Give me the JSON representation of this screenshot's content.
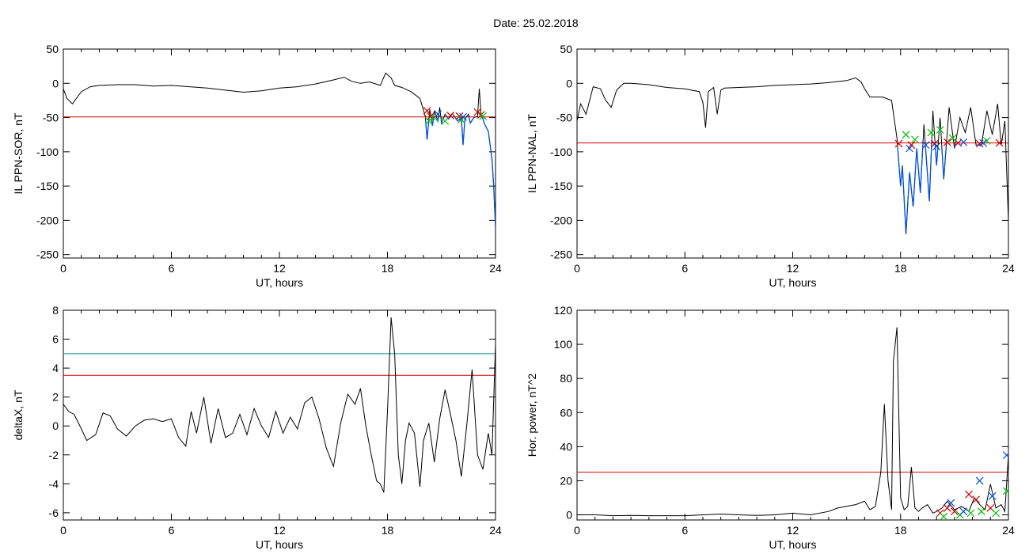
{
  "figure": {
    "title": "Date:  25.02.2018"
  },
  "colors": {
    "trace": "#000000",
    "threshold_red": "#d00000",
    "threshold_cyan": "#008c8c",
    "blue_segment": "#0050e0",
    "cross_red": "#d00000",
    "cross_green": "#00c000",
    "cross_blue": "#0050e0"
  },
  "chart_data": [
    {
      "id": "p1",
      "type": "line",
      "ylabel": "IL PPN-SOR, nT",
      "xlabel": "UT, hours",
      "xlim": [
        0,
        24
      ],
      "ylim": [
        -255,
        50
      ],
      "xticks": [
        0,
        6,
        12,
        18,
        24
      ],
      "yticks": [
        50,
        0,
        -50,
        -100,
        -150,
        -200,
        -250
      ],
      "thresholds": [
        {
          "y": -49,
          "color": "#d00000"
        }
      ],
      "series": [
        {
          "x": [
            0,
            0.2,
            0.5,
            1,
            1.5,
            2,
            3,
            4,
            5,
            6,
            7,
            8,
            9,
            10,
            11,
            12,
            13,
            14,
            15,
            15.6,
            16,
            16.5,
            17,
            17.6,
            17.9,
            18.2,
            18.4,
            18.8,
            19.3,
            19.8,
            20.1,
            20.2,
            20.35,
            20.5,
            20.6,
            20.8,
            20.9,
            21.0,
            21.2,
            21.4,
            21.6,
            21.9,
            22.1,
            22.2,
            22.3,
            22.5,
            22.6,
            22.8,
            23.0,
            23.1,
            23.2,
            23.3,
            23.4,
            23.6,
            23.8,
            23.9,
            24
          ],
          "y": [
            -8,
            -22,
            -30,
            -12,
            -5,
            -3,
            -2,
            -2,
            -4,
            -3,
            -5,
            -7,
            -10,
            -13,
            -11,
            -7,
            -5,
            -1,
            5,
            9,
            3,
            0,
            2,
            -3,
            15,
            8,
            -3,
            -6,
            -12,
            -22,
            -48,
            -82,
            -38,
            -62,
            -40,
            -55,
            -35,
            -58,
            -45,
            -52,
            -44,
            -55,
            -50,
            -90,
            -52,
            -45,
            -58,
            -50,
            -48,
            -8,
            -45,
            -52,
            -60,
            -70,
            -110,
            -150,
            -210
          ]
        }
      ],
      "blue_segments_x_ranges": [
        [
          20.1,
          24
        ]
      ],
      "crosses": {
        "red": [
          [
            20.2,
            -40
          ],
          [
            20.4,
            -48
          ],
          [
            21.5,
            -47
          ],
          [
            22.0,
            -48
          ],
          [
            23.0,
            -42
          ],
          [
            23.2,
            -46
          ]
        ],
        "green": [
          [
            20.3,
            -55
          ],
          [
            20.6,
            -50
          ],
          [
            21.2,
            -55
          ],
          [
            22.1,
            -53
          ],
          [
            23.3,
            -48
          ]
        ],
        "blue": [
          [
            20.8,
            -45
          ],
          [
            22.2,
            -49
          ]
        ]
      }
    },
    {
      "id": "p2",
      "type": "line",
      "ylabel": "IL PPN-NAL, nT",
      "xlabel": "UT, hours",
      "xlim": [
        0,
        24
      ],
      "ylim": [
        -255,
        50
      ],
      "xticks": [
        0,
        6,
        12,
        18,
        24
      ],
      "yticks": [
        50,
        0,
        -50,
        -100,
        -150,
        -200,
        -250
      ],
      "thresholds": [
        {
          "y": -87,
          "color": "#d00000"
        }
      ],
      "series": [
        {
          "x": [
            0,
            0.2,
            0.5,
            0.9,
            1.3,
            1.6,
            1.9,
            2.2,
            2.6,
            3,
            4,
            5,
            6,
            6.8,
            7.0,
            7.15,
            7.3,
            7.6,
            7.8,
            8.0,
            8.2,
            9,
            10,
            11,
            12,
            13,
            14,
            15,
            15.5,
            15.8,
            16,
            16.3,
            17,
            17.5,
            17.8,
            18.0,
            18.1,
            18.3,
            18.5,
            18.7,
            18.9,
            19.1,
            19.3,
            19.6,
            19.8,
            20.0,
            20.2,
            20.4,
            20.7,
            21.0,
            21.3,
            21.6,
            21.9,
            22.2,
            22.5,
            22.8,
            23.1,
            23.4,
            23.6,
            23.8,
            24
          ],
          "y": [
            -55,
            -30,
            -45,
            -5,
            -8,
            -25,
            -35,
            -10,
            0,
            0,
            -2,
            -6,
            -8,
            -12,
            -28,
            -65,
            -12,
            -6,
            -45,
            -10,
            -7,
            -6,
            -5,
            -3,
            -2,
            -1,
            1,
            4,
            8,
            2,
            -8,
            -20,
            -20,
            -25,
            -80,
            -150,
            -120,
            -220,
            -130,
            -180,
            -95,
            -160,
            -60,
            -172,
            -40,
            -120,
            -50,
            -140,
            -35,
            -95,
            -50,
            -72,
            -35,
            -90,
            -90,
            -40,
            -75,
            -30,
            -90,
            -55,
            -200
          ]
        }
      ],
      "blue_segments_x_ranges": [
        [
          17.8,
          21.5
        ],
        [
          22.0,
          23.0
        ]
      ],
      "crosses": {
        "red": [
          [
            17.9,
            -88
          ],
          [
            18.6,
            -90
          ],
          [
            19.9,
            -88
          ],
          [
            20.6,
            -86
          ],
          [
            21.2,
            -87
          ],
          [
            22.4,
            -88
          ],
          [
            23.5,
            -87
          ]
        ],
        "green": [
          [
            18.3,
            -75
          ],
          [
            18.8,
            -82
          ],
          [
            19.7,
            -72
          ],
          [
            20.2,
            -68
          ],
          [
            20.9,
            -80
          ],
          [
            22.8,
            -84
          ]
        ],
        "blue": [
          [
            18.5,
            -95
          ],
          [
            19.4,
            -90
          ],
          [
            20.0,
            -92
          ],
          [
            21.5,
            -86
          ],
          [
            22.6,
            -87
          ]
        ]
      }
    },
    {
      "id": "p3",
      "type": "line",
      "ylabel": "deltaX, nT",
      "xlabel": "UT, hours",
      "xlim": [
        0,
        24
      ],
      "ylim": [
        -6.5,
        8
      ],
      "xticks": [
        0,
        6,
        12,
        18,
        24
      ],
      "yticks": [
        8,
        6,
        4,
        2,
        0,
        -2,
        -4,
        -6
      ],
      "thresholds": [
        {
          "y": 5,
          "color": "#008c8c"
        },
        {
          "y": 3.5,
          "color": "#d00000"
        }
      ],
      "series": [
        {
          "x": [
            0,
            0.3,
            0.6,
            1.0,
            1.3,
            1.8,
            2.2,
            2.6,
            3.0,
            3.5,
            4.0,
            4.5,
            5.0,
            5.5,
            6.0,
            6.4,
            6.8,
            7.1,
            7.4,
            7.8,
            8.2,
            8.6,
            9.0,
            9.4,
            9.8,
            10.2,
            10.6,
            11.0,
            11.4,
            11.8,
            12.2,
            12.6,
            13.0,
            13.4,
            13.8,
            14.2,
            14.6,
            15.0,
            15.4,
            15.8,
            16.2,
            16.5,
            16.8,
            17.1,
            17.4,
            17.6,
            17.8,
            18.0,
            18.2,
            18.4,
            18.6,
            18.8,
            19.0,
            19.2,
            19.5,
            19.8,
            20.0,
            20.3,
            20.6,
            20.9,
            21.2,
            21.5,
            21.8,
            22.1,
            22.4,
            22.7,
            23.0,
            23.3,
            23.6,
            23.8,
            24
          ],
          "y": [
            1.5,
            1.0,
            0.8,
            -0.2,
            -1.0,
            -0.6,
            0.9,
            0.7,
            -0.2,
            -0.7,
            0.0,
            0.4,
            0.5,
            0.3,
            0.5,
            -0.8,
            -1.4,
            1.0,
            -0.5,
            2.0,
            -1.2,
            1.2,
            -0.8,
            -0.5,
            0.8,
            -0.6,
            1.2,
            0.0,
            -0.8,
            1.0,
            -0.5,
            0.6,
            -0.2,
            1.6,
            2.0,
            0.5,
            -1.5,
            -2.8,
            0.2,
            2.2,
            1.5,
            2.6,
            0.0,
            -2.0,
            -3.8,
            -4.0,
            -4.6,
            1.0,
            7.5,
            5.0,
            -2.0,
            -4.0,
            -1.0,
            0.2,
            -0.5,
            -4.2,
            -1.0,
            0.2,
            -2.5,
            0.5,
            2.5,
            0.8,
            -1.0,
            -3.5,
            0.0,
            3.9,
            -2.0,
            -3.0,
            -0.5,
            -2.0,
            5.7
          ]
        }
      ]
    },
    {
      "id": "p4",
      "type": "line",
      "ylabel": "Hor. power, nT^2",
      "xlabel": "UT, hours",
      "xlim": [
        0,
        24
      ],
      "ylim": [
        -3,
        120
      ],
      "xticks": [
        0,
        6,
        12,
        18,
        24
      ],
      "yticks": [
        120,
        100,
        80,
        60,
        40,
        20,
        0
      ],
      "thresholds": [
        {
          "y": 25,
          "color": "#d00000"
        }
      ],
      "series": [
        {
          "x": [
            0,
            1,
            2,
            3,
            4,
            5,
            6,
            7,
            8,
            9,
            10,
            11,
            12,
            13,
            14,
            14.5,
            15,
            15.5,
            16,
            16.3,
            16.6,
            16.9,
            17.1,
            17.3,
            17.5,
            17.6,
            17.8,
            17.9,
            18.0,
            18.2,
            18.4,
            18.6,
            18.8,
            19.0,
            19.2,
            19.5,
            19.8,
            20.0,
            20.3,
            20.6,
            21.0,
            21.4,
            21.8,
            22.1,
            22.4,
            22.7,
            23.0,
            23.3,
            23.6,
            23.8,
            24
          ],
          "y": [
            0,
            0,
            -0.5,
            -0.3,
            -0.5,
            -0.5,
            -0.5,
            0,
            0.5,
            0,
            -0.3,
            0,
            1,
            0,
            2,
            4,
            5,
            6,
            8,
            3,
            5,
            25,
            65,
            20,
            3,
            90,
            110,
            60,
            10,
            3,
            5,
            28,
            4,
            2,
            4,
            6,
            1,
            2,
            4,
            8,
            3,
            5,
            2,
            10,
            6,
            3,
            18,
            4,
            6,
            2,
            35
          ]
        }
      ],
      "crosses": {
        "red": [
          [
            20.2,
            1
          ],
          [
            20.6,
            4
          ],
          [
            21.0,
            2
          ],
          [
            21.8,
            12
          ],
          [
            22.2,
            9
          ],
          [
            23.0,
            4
          ]
        ],
        "green": [
          [
            20.4,
            -1
          ],
          [
            21.3,
            0
          ],
          [
            21.9,
            1
          ],
          [
            22.5,
            2
          ],
          [
            23.3,
            1
          ],
          [
            23.9,
            14
          ]
        ],
        "blue": [
          [
            20.8,
            7
          ],
          [
            21.5,
            2
          ],
          [
            22.4,
            20
          ],
          [
            23.1,
            11
          ],
          [
            23.9,
            35
          ]
        ]
      }
    }
  ]
}
